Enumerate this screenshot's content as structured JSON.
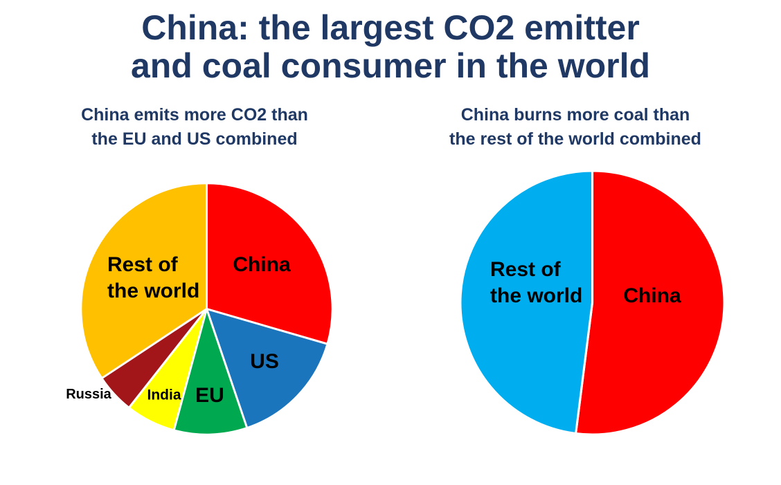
{
  "title": {
    "line1": "China: the largest CO2 emitter",
    "line2": "and coal consumer in the world",
    "color": "#1F3864"
  },
  "colors": {
    "heading_text": "#1F3864",
    "slice_label_text": "#000000",
    "slice_border": "#FFFFFF",
    "background": "#FFFFFF"
  },
  "chart_data": [
    {
      "type": "pie",
      "title": "China emits more CO2 than the EU and US combined",
      "title_lines": [
        "China emits more CO2 than",
        "the EU and US combined"
      ],
      "direction": "clockwise",
      "start_angle_deg": 0,
      "legend": "labels placed on slices",
      "slices": [
        {
          "label": "China",
          "value": 29.5,
          "color": "#FF0000"
        },
        {
          "label": "US",
          "value": 15.3,
          "color": "#1B75BC"
        },
        {
          "label": "EU",
          "value": 9.4,
          "color": "#00A94F"
        },
        {
          "label": "India",
          "value": 6.4,
          "color": "#FFFF00"
        },
        {
          "label": "Russia",
          "value": 5.1,
          "color": "#A2161A"
        },
        {
          "label": "Rest of the world",
          "value": 34.3,
          "color": "#FFC000"
        }
      ]
    },
    {
      "type": "pie",
      "title": "China burns more coal than the rest of the world combined",
      "title_lines": [
        "China burns more coal than",
        "the rest of the world combined"
      ],
      "direction": "clockwise",
      "start_angle_deg": 0,
      "legend": "labels placed on slices",
      "slices": [
        {
          "label": "China",
          "value": 52,
          "color": "#FF0000"
        },
        {
          "label": "Rest of the world",
          "value": 48,
          "color": "#00AEEF"
        }
      ]
    }
  ]
}
